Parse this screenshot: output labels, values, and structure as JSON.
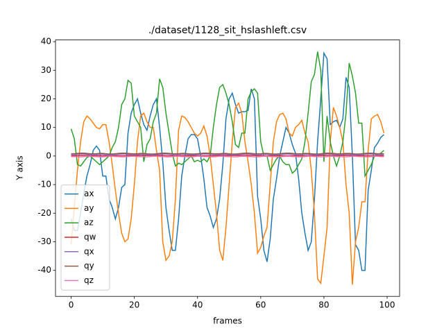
{
  "chart_data": {
    "type": "line",
    "title": "./dataset/1128_sit_hslashleft.csv",
    "x_label": "frames",
    "y_label": "Y axis",
    "x": [
      0,
      1,
      2,
      3,
      4,
      5,
      6,
      7,
      8,
      9,
      10,
      11,
      12,
      13,
      14,
      15,
      16,
      17,
      18,
      19,
      20,
      21,
      22,
      23,
      24,
      25,
      26,
      27,
      28,
      29,
      30,
      31,
      32,
      33,
      34,
      35,
      36,
      37,
      38,
      39,
      40,
      41,
      42,
      43,
      44,
      45,
      46,
      47,
      48,
      49,
      50,
      51,
      52,
      53,
      54,
      55,
      56,
      57,
      58,
      59,
      60,
      61,
      62,
      63,
      64,
      65,
      66,
      67,
      68,
      69,
      70,
      71,
      72,
      73,
      74,
      75,
      76,
      77,
      78,
      79,
      80,
      81,
      82,
      83,
      84,
      85,
      86,
      87,
      88,
      89,
      90,
      91,
      92,
      93,
      94,
      95,
      96,
      97,
      98,
      99
    ],
    "xlim": [
      -4.95,
      103.95
    ],
    "xticks": [
      0,
      20,
      40,
      60,
      80,
      100
    ],
    "ylim": [
      -49.1,
      40.6
    ],
    "yticks": [
      -40,
      -30,
      -20,
      -10,
      0,
      10,
      20,
      30,
      40
    ],
    "legend": "lower left",
    "series": [
      {
        "name": "ax",
        "color": "#1f77b4",
        "values": [
          -22,
          -26,
          -26,
          -20,
          -13,
          -7,
          -3,
          2,
          3.5,
          2,
          -7,
          -7,
          -15,
          -18,
          -22,
          -18,
          -11,
          -10,
          8,
          15,
          18,
          20,
          15,
          11,
          9,
          14,
          18,
          20,
          10,
          -2,
          -18,
          -26,
          -33,
          -33,
          -22,
          -7,
          0,
          6,
          7.5,
          7.5,
          6,
          0,
          -8,
          -18,
          -21,
          -25,
          -22,
          -15,
          -3,
          13,
          20,
          22,
          18,
          15,
          15.5,
          15.5,
          16,
          23.5,
          20,
          -14,
          -22,
          -33,
          -37,
          -29,
          -15,
          -8,
          0,
          5,
          10,
          8,
          4,
          1,
          -8,
          -20,
          -27,
          -33,
          -30,
          -15,
          5,
          20,
          36,
          34,
          11,
          12,
          12.5,
          10,
          13,
          27.5,
          24,
          0,
          -31,
          -33,
          -40,
          -40,
          -12,
          -5,
          3,
          4.5,
          6.5,
          7.5
        ]
      },
      {
        "name": "ay",
        "color": "#ff7f0e",
        "values": [
          -31,
          -18,
          -5,
          5,
          12,
          14,
          13,
          11.5,
          10,
          9.5,
          11,
          11,
          5,
          -3,
          -12,
          -20,
          -27,
          -30,
          -29,
          -22,
          -10,
          5,
          14,
          15,
          12,
          10,
          10,
          2,
          -5,
          -30,
          -36.5,
          -35,
          -30,
          -15,
          9,
          14,
          13.5,
          12,
          10,
          8,
          7,
          8,
          10.5,
          7,
          0,
          -10,
          -20,
          -33,
          -36.5,
          -25,
          -10,
          5,
          17,
          18.5,
          15,
          5,
          -2,
          -10,
          -20,
          -34,
          -32,
          -28,
          -25,
          -10,
          5,
          12,
          14.5,
          15,
          13,
          8,
          7,
          10,
          11,
          12.5,
          8,
          5,
          -5,
          -20,
          -43,
          -44.5,
          -35,
          -25,
          5,
          17,
          14,
          10,
          5,
          -10,
          -20,
          -45,
          -30,
          -25,
          -16,
          -16,
          2,
          13,
          14,
          14.5,
          12,
          8
        ]
      },
      {
        "name": "az",
        "color": "#2ca02c",
        "values": [
          9.5,
          6,
          -3,
          -3.5,
          -2,
          -0.5,
          0,
          -1,
          -2,
          -3,
          -2,
          -1,
          0,
          3,
          5,
          10,
          18,
          20,
          26.5,
          25.5,
          14,
          12,
          10,
          -2,
          4,
          6,
          12,
          15,
          27,
          24,
          15,
          8,
          1,
          -3.5,
          -2.5,
          -3,
          -2,
          -1,
          0,
          -2,
          -1.5,
          -2,
          -1,
          -2,
          0,
          10,
          18,
          24,
          25,
          22,
          18,
          12,
          4,
          3,
          8,
          8,
          20,
          22.5,
          23.5,
          22,
          5,
          0,
          0,
          -5,
          -3,
          -1,
          0,
          -2,
          -3,
          -3,
          -6,
          -5,
          -3,
          -1,
          5,
          15,
          26,
          28.5,
          36.5,
          30,
          -2,
          14,
          5,
          0,
          -3.5,
          0,
          5,
          15,
          32.5,
          28,
          22,
          11.5,
          11.5,
          -7,
          -5,
          -3,
          0,
          0.5,
          1,
          2
        ]
      },
      {
        "name": "qw",
        "color": "#d62728",
        "values": [
          0.1,
          0.1,
          0.1,
          0.2,
          0.2,
          0.2,
          0.1,
          0.1,
          0.1,
          0.1,
          0.1,
          0.1,
          0.1,
          0.1,
          0.1,
          0.1,
          0.1,
          0.1,
          0.2,
          0.2,
          0.2,
          0.2,
          0.2,
          0.2,
          0.2,
          0.2,
          0.2,
          0.2,
          0.2,
          0.2,
          0.1,
          0.1,
          0.1,
          0.1,
          0.1,
          0.1,
          0.1,
          0.1,
          0.1,
          0.1,
          0.1,
          0.1,
          0.1,
          0.1,
          0.1,
          0.1,
          0.1,
          0.2,
          0.2,
          0.2,
          0.2,
          0.2,
          0.2,
          0.2,
          0.2,
          0.2,
          0.2,
          0.2,
          0.2,
          0.1,
          0.1,
          0.1,
          0.1,
          0.1,
          0.1,
          0.1,
          0.1,
          0.1,
          0.1,
          0.1,
          0.1,
          0.1,
          0.1,
          0.1,
          0.1,
          0.1,
          0.1,
          0.2,
          0.2,
          0.2,
          0.2,
          0.2,
          0.2,
          0.2,
          0.2,
          0.2,
          0.2,
          0.2,
          0.2,
          0.1,
          0.1,
          0.1,
          0.1,
          0.1,
          0.1,
          0.1,
          0.1,
          0.1,
          0.1,
          0.1
        ]
      },
      {
        "name": "qx",
        "color": "#9467bd",
        "values": [
          0.5,
          0.5,
          0.6,
          0.7,
          0.7,
          0.6,
          0.5,
          0.5,
          0.5,
          0.6,
          0.6,
          0.5,
          0.4,
          0.4,
          0.5,
          0.6,
          0.7,
          0.7,
          0.6,
          0.5,
          0.5,
          0.5,
          0.6,
          0.6,
          0.5,
          0.4,
          0.4,
          0.5,
          0.6,
          0.7,
          0.7,
          0.6,
          0.5,
          0.5,
          0.5,
          0.6,
          0.6,
          0.5,
          0.4,
          0.4,
          0.5,
          0.6,
          0.7,
          0.7,
          0.6,
          0.5,
          0.5,
          0.5,
          0.6,
          0.6,
          0.5,
          0.4,
          0.4,
          0.5,
          0.6,
          0.7,
          0.7,
          0.6,
          0.5,
          0.5,
          0.5,
          0.6,
          0.6,
          0.5,
          0.4,
          0.4,
          0.5,
          0.6,
          0.7,
          0.7,
          0.6,
          0.5,
          0.5,
          0.5,
          0.6,
          0.6,
          0.5,
          0.4,
          0.4,
          0.5,
          0.6,
          0.7,
          0.7,
          0.6,
          0.5,
          0.5,
          0.5,
          0.6,
          0.6,
          0.5,
          0.4,
          0.4,
          0.5,
          0.6,
          0.7,
          0.7,
          0.6,
          0.5,
          0.5,
          0.5
        ]
      },
      {
        "name": "qy",
        "color": "#8c564b",
        "values": [
          0.8,
          0.8,
          0.9,
          1,
          1,
          0.9,
          0.8,
          0.8,
          0.8,
          0.9,
          0.9,
          0.8,
          0.7,
          0.7,
          0.8,
          0.9,
          1,
          1,
          0.9,
          0.8,
          0.8,
          0.8,
          0.9,
          0.9,
          0.8,
          0.7,
          0.7,
          0.8,
          0.9,
          1,
          1,
          0.9,
          0.8,
          0.8,
          0.8,
          0.9,
          0.9,
          0.8,
          0.7,
          0.7,
          0.8,
          0.9,
          1,
          1,
          0.9,
          0.8,
          0.8,
          0.8,
          0.9,
          0.9,
          0.8,
          0.7,
          0.7,
          0.8,
          0.9,
          1,
          1,
          0.9,
          0.8,
          0.8,
          0.8,
          0.9,
          0.9,
          0.8,
          0.7,
          0.7,
          0.8,
          0.9,
          1,
          1,
          0.9,
          0.8,
          0.8,
          0.8,
          0.9,
          0.9,
          0.8,
          0.7,
          0.7,
          0.8,
          0.9,
          1,
          1,
          0.9,
          0.8,
          0.8,
          0.8,
          0.9,
          0.9,
          0.8,
          0.7,
          0.7,
          0.8,
          0.9,
          1,
          1,
          0.9,
          0.8,
          0.8,
          0.8
        ]
      },
      {
        "name": "qz",
        "color": "#e377c2",
        "values": [
          -0.2,
          -0.2,
          -0.3,
          -0.3,
          -0.2,
          -0.1,
          -0.1,
          -0.2,
          -0.2,
          -0.3,
          -0.3,
          -0.2,
          -0.1,
          -0.1,
          -0.2,
          -0.2,
          -0.3,
          -0.3,
          -0.2,
          -0.1,
          -0.1,
          -0.2,
          -0.2,
          -0.3,
          -0.3,
          -0.2,
          -0.1,
          -0.1,
          -0.2,
          -0.2,
          -0.3,
          -0.3,
          -0.2,
          -0.1,
          -0.1,
          -0.2,
          -0.2,
          -0.3,
          -0.3,
          -0.2,
          -0.1,
          -0.1,
          -0.2,
          -0.2,
          -0.3,
          -0.3,
          -0.2,
          -0.1,
          -0.1,
          -0.2,
          -0.2,
          -0.3,
          -0.3,
          -0.2,
          -0.1,
          -0.1,
          -0.2,
          -0.2,
          -0.3,
          -0.3,
          -0.2,
          -0.1,
          -0.1,
          -0.2,
          -0.2,
          -0.3,
          -0.3,
          -0.2,
          -0.1,
          -0.1,
          -0.2,
          -0.2,
          -0.3,
          -0.3,
          -0.2,
          -0.1,
          -0.1,
          -0.2,
          -0.2,
          -0.3,
          -0.3,
          -0.2,
          -0.1,
          -0.1,
          -0.2,
          -0.2,
          -0.3,
          -0.3,
          -0.2,
          -0.1,
          -0.1,
          -0.2,
          -0.2,
          -0.3,
          -0.3,
          -0.2,
          -0.1,
          -0.1,
          -0.2,
          -0.2
        ]
      }
    ]
  }
}
